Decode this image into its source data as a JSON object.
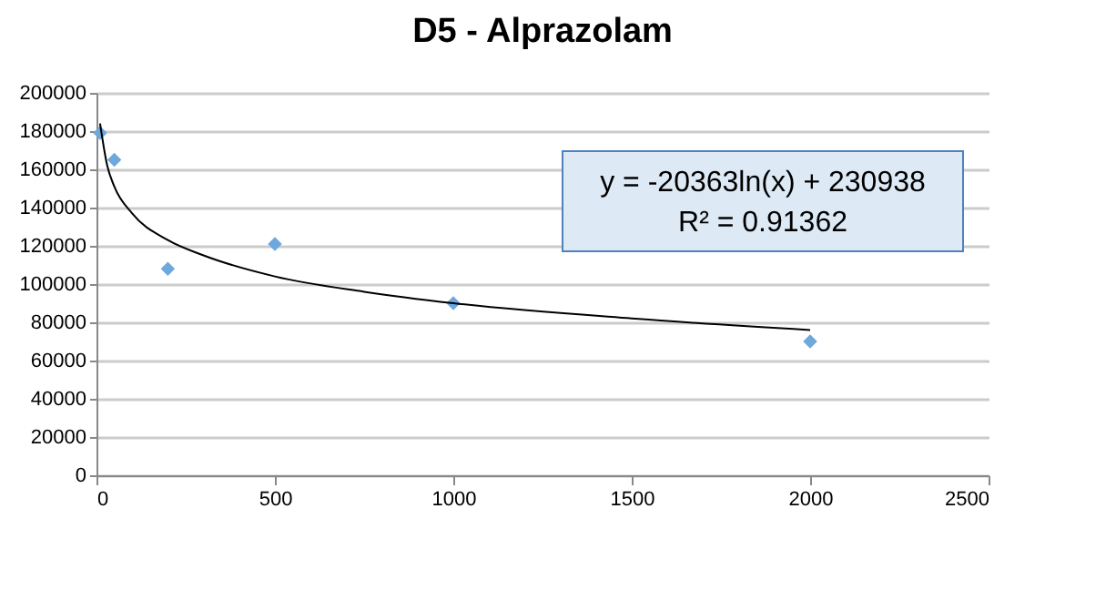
{
  "chart_data": {
    "type": "scatter",
    "title": "D5 - Alprazolam",
    "xlim": [
      0,
      2500
    ],
    "xticks": [
      0,
      500,
      1000,
      1500,
      2000,
      2500
    ],
    "ylim": [
      0,
      200000
    ],
    "yticks": [
      0,
      20000,
      40000,
      60000,
      80000,
      100000,
      120000,
      140000,
      160000,
      180000,
      200000
    ],
    "grid": "y",
    "marker": "diamond",
    "annotations": [
      "y = -20363ln(x) + 230938",
      "R² = 0.91362"
    ],
    "series": [
      {
        "color": "#6fa8dc",
        "x": [
          10,
          50,
          200,
          500,
          1000,
          2000
        ],
        "values": [
          179000,
          165000,
          108000,
          121000,
          90000,
          70000
        ]
      },
      {
        "type": "line",
        "marker": "none",
        "color": "#000000",
        "x": [
          10,
          30,
          50,
          100,
          200,
          300,
          500,
          750,
          1000,
          1500,
          2000
        ],
        "values": [
          184000,
          162000,
          151000,
          137000,
          123000,
          115000,
          104000,
          96000,
          90000,
          82000,
          76000
        ]
      }
    ]
  }
}
